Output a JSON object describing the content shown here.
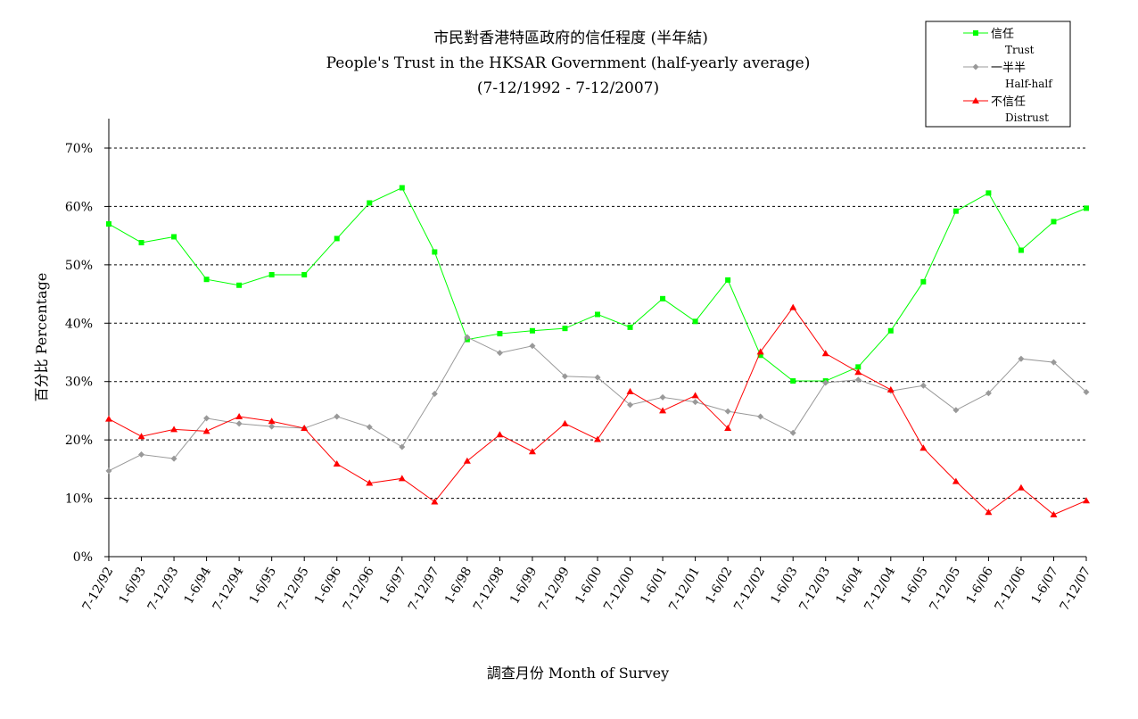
{
  "chart_data": {
    "type": "line",
    "title": "市民對香港特區政府的信任程度 (半年結)",
    "subtitle": "People's Trust in the HKSAR Government (half-yearly average)",
    "period": "(7-12/1992 - 7-12/2007)",
    "xlabel": "調查月份 Month of Survey",
    "ylabel": "百分比 Percentage",
    "ylim": [
      0,
      70
    ],
    "yticks": [
      "0%",
      "10%",
      "20%",
      "30%",
      "40%",
      "50%",
      "60%",
      "70%"
    ],
    "ytick_values": [
      0,
      10,
      20,
      30,
      40,
      50,
      60,
      70
    ],
    "grid": "horizontal dashed",
    "legend_position": "top-right",
    "categories": [
      "7-12/92",
      "1-6/93",
      "7-12/93",
      "1-6/94",
      "7-12/94",
      "1-6/95",
      "7-12/95",
      "1-6/96",
      "7-12/96",
      "1-6/97",
      "7-12/97",
      "1-6/98",
      "7-12/98",
      "1-6/99",
      "7-12/99",
      "1-6/00",
      "7-12/00",
      "1-6/01",
      "7-12/01",
      "1-6/02",
      "7-12/02",
      "1-6/03",
      "7-12/03",
      "1-6/04",
      "7-12/04",
      "1-6/05",
      "7-12/05",
      "1-6/06",
      "7-12/06",
      "1-6/07",
      "7-12/07"
    ],
    "series": [
      {
        "name": "信任",
        "name_en": "Trust",
        "color": "#00ff00",
        "marker": "square",
        "values": [
          57.0,
          53.8,
          54.8,
          47.5,
          46.5,
          48.3,
          48.3,
          54.5,
          60.6,
          63.2,
          52.2,
          37.2,
          38.2,
          38.7,
          39.1,
          41.5,
          39.3,
          44.2,
          40.3,
          47.4,
          34.5,
          30.1,
          30.1,
          32.5,
          38.7,
          47.1,
          59.2,
          62.3,
          52.5,
          57.4,
          59.7
        ]
      },
      {
        "name": "一半半",
        "name_en": "Half-half",
        "color": "#999999",
        "marker": "diamond",
        "values": [
          14.7,
          17.5,
          16.8,
          23.7,
          22.8,
          22.3,
          22.0,
          24.0,
          22.2,
          18.8,
          27.9,
          37.6,
          34.9,
          36.1,
          30.9,
          30.7,
          26.0,
          27.3,
          26.5,
          24.9,
          24.0,
          21.2,
          29.8,
          30.3,
          28.4,
          29.3,
          25.1,
          28.0,
          33.9,
          33.3,
          28.2
        ]
      },
      {
        "name": "不信任",
        "name_en": "Distrust",
        "color": "#ff0000",
        "marker": "triangle",
        "values": [
          23.6,
          20.6,
          21.8,
          21.5,
          24.0,
          23.2,
          22.0,
          15.9,
          12.6,
          13.4,
          9.4,
          16.4,
          20.9,
          18.0,
          22.8,
          20.1,
          28.3,
          25.0,
          27.6,
          22.0,
          35.1,
          42.7,
          34.8,
          31.6,
          28.6,
          18.6,
          12.9,
          7.6,
          11.8,
          7.2,
          9.6
        ]
      }
    ]
  }
}
